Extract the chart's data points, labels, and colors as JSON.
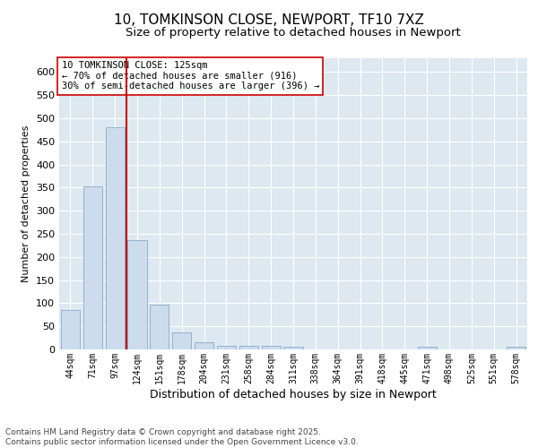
{
  "title": "10, TOMKINSON CLOSE, NEWPORT, TF10 7XZ",
  "subtitle": "Size of property relative to detached houses in Newport",
  "xlabel": "Distribution of detached houses by size in Newport",
  "ylabel": "Number of detached properties",
  "categories": [
    "44sqm",
    "71sqm",
    "97sqm",
    "124sqm",
    "151sqm",
    "178sqm",
    "204sqm",
    "231sqm",
    "258sqm",
    "284sqm",
    "311sqm",
    "338sqm",
    "364sqm",
    "391sqm",
    "418sqm",
    "445sqm",
    "471sqm",
    "498sqm",
    "525sqm",
    "551sqm",
    "578sqm"
  ],
  "values": [
    85,
    352,
    480,
    237,
    96,
    37,
    16,
    7,
    8,
    8,
    5,
    0,
    0,
    0,
    0,
    0,
    5,
    0,
    0,
    0,
    5
  ],
  "bar_color": "#ccdcec",
  "bar_edge_color": "#88aacc",
  "vline_x_index": 3,
  "vline_color": "#cc0000",
  "annotation_text": "10 TOMKINSON CLOSE: 125sqm\n← 70% of detached houses are smaller (916)\n30% of semi-detached houses are larger (396) →",
  "annotation_box_facecolor": "#ffffff",
  "annotation_box_edgecolor": "#cc0000",
  "ylim": [
    0,
    630
  ],
  "yticks": [
    0,
    50,
    100,
    150,
    200,
    250,
    300,
    350,
    400,
    450,
    500,
    550,
    600
  ],
  "axes_facecolor": "#dde8f0",
  "fig_facecolor": "#ffffff",
  "grid_color": "#ffffff",
  "title_fontsize": 11,
  "subtitle_fontsize": 9.5,
  "xlabel_fontsize": 9,
  "ylabel_fontsize": 8,
  "xtick_fontsize": 7,
  "ytick_fontsize": 8,
  "annotation_fontsize": 7.5,
  "footer_text": "Contains HM Land Registry data © Crown copyright and database right 2025.\nContains public sector information licensed under the Open Government Licence v3.0.",
  "footer_fontsize": 6.5
}
